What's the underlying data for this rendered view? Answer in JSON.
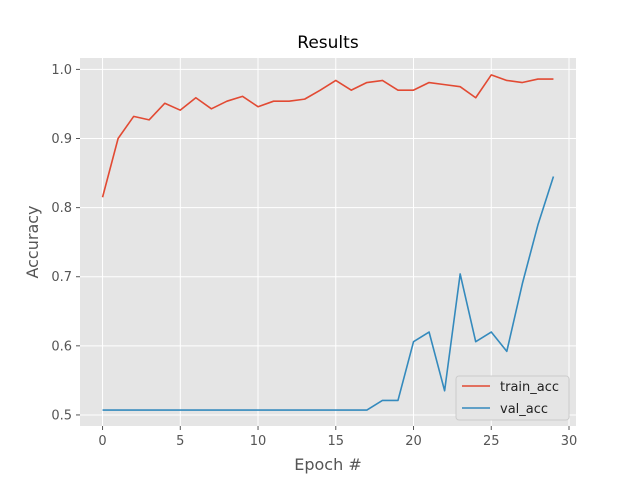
{
  "chart_data": {
    "type": "line",
    "title": "Results",
    "xlabel": "Epoch #",
    "ylabel": "Accuracy",
    "xlim": [
      -1.45,
      30.45
    ],
    "ylim": [
      0.484,
      1.0165
    ],
    "xticks": [
      0,
      5,
      10,
      15,
      20,
      25,
      30
    ],
    "yticks": [
      0.5,
      0.6,
      0.7,
      0.8,
      0.9,
      1.0
    ],
    "ytick_labels": [
      "0.5",
      "0.6",
      "0.7",
      "0.8",
      "0.9",
      "1.0"
    ],
    "grid": true,
    "legend_position": "lower-right",
    "x": [
      0,
      1,
      2,
      3,
      4,
      5,
      6,
      7,
      8,
      9,
      10,
      11,
      12,
      13,
      14,
      15,
      16,
      17,
      18,
      19,
      20,
      21,
      22,
      23,
      24,
      25,
      26,
      27,
      28,
      29
    ],
    "series": [
      {
        "name": "train_acc",
        "color": "#E24A33",
        "values": [
          0.815,
          0.9,
          0.932,
          0.927,
          0.951,
          0.941,
          0.959,
          0.943,
          0.954,
          0.961,
          0.946,
          0.954,
          0.954,
          0.957,
          0.97,
          0.984,
          0.97,
          0.981,
          0.984,
          0.97,
          0.97,
          0.981,
          0.978,
          0.975,
          0.959,
          0.992,
          0.984,
          0.981,
          0.986,
          0.986
        ]
      },
      {
        "name": "val_acc",
        "color": "#348ABD",
        "values": [
          0.507,
          0.507,
          0.507,
          0.507,
          0.507,
          0.507,
          0.507,
          0.507,
          0.507,
          0.507,
          0.507,
          0.507,
          0.507,
          0.507,
          0.507,
          0.507,
          0.507,
          0.507,
          0.521,
          0.521,
          0.606,
          0.62,
          0.535,
          0.704,
          0.606,
          0.62,
          0.592,
          0.69,
          0.775,
          0.845
        ]
      }
    ]
  }
}
